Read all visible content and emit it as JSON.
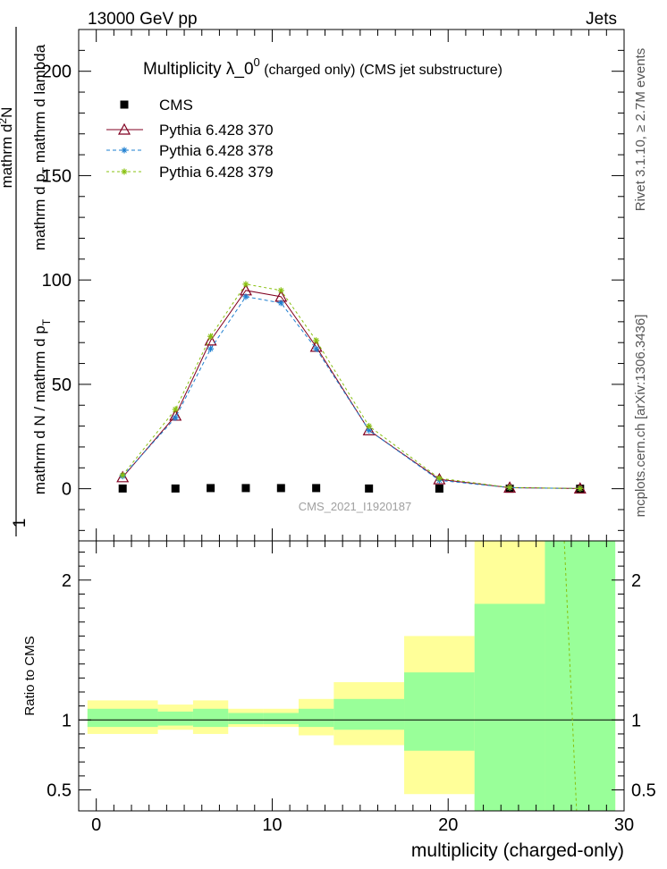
{
  "header": {
    "left": "13000 GeV pp",
    "right": "Jets"
  },
  "side_text": {
    "rivet": "Rivet 3.1.10, ≥ 2.7M events",
    "mcplots": "mcplots.cern.ch [arXiv:1306.3436]"
  },
  "watermark": "CMS_2021_I1920187",
  "chart_data": [
    {
      "type": "line",
      "title_main": "Multiplicity  λ_0",
      "title_sup": "0",
      "title_rest": "(charged only) (CMS jet substructure)",
      "ylabel_numerator": "1",
      "ylabel_denominator": "mathrm d N / mathrm d p",
      "ylabel_denominator_sub": "T",
      "ylabel_numerator_right_a": "mathrm d",
      "ylabel_numerator_right_sup": "2",
      "ylabel_numerator_right_b": "N",
      "ylabel_denominator_right_a": "mathrm d p",
      "ylabel_denominator_right_sub": "T",
      "ylabel_denominator_right_b": " mathrm d lambda",
      "xlim": [
        -1,
        30
      ],
      "ylim": [
        -25,
        220
      ],
      "yticks": [
        0,
        50,
        100,
        150,
        200
      ],
      "legend_position": "top-left",
      "series": [
        {
          "name": "CMS",
          "style": "data",
          "color": "#000000",
          "x": [
            1.5,
            4.5,
            6.5,
            8.5,
            10.5,
            12.5,
            15.5,
            19.5,
            23.5,
            27.5
          ],
          "y": [
            0.1,
            0.1,
            0.3,
            0.3,
            0.3,
            0.3,
            0.1,
            0.05,
            0.02,
            0.01
          ]
        },
        {
          "name": "Pythia 6.428 370",
          "style": "solid-triangle",
          "color": "#800020",
          "x": [
            1.5,
            4.5,
            6.5,
            8.5,
            10.5,
            12.5,
            15.5,
            19.5,
            23.5,
            27.5
          ],
          "y": [
            5.5,
            35.0,
            71.0,
            95.0,
            92.0,
            68.0,
            28.0,
            4.5,
            0.5,
            0.1
          ]
        },
        {
          "name": "Pythia 6.428 378",
          "style": "dashed-star",
          "color": "#1e7fd0",
          "x": [
            1.5,
            4.5,
            6.5,
            8.5,
            10.5,
            12.5,
            15.5,
            19.5,
            23.5,
            27.5
          ],
          "y": [
            6.0,
            34.0,
            67.0,
            92.0,
            89.0,
            67.0,
            28.0,
            4.0,
            0.5,
            0.1
          ]
        },
        {
          "name": "Pythia 6.428 379",
          "style": "dotted-star",
          "color": "#88c010",
          "x": [
            1.5,
            4.5,
            6.5,
            8.5,
            10.5,
            12.5,
            15.5,
            19.5,
            23.5,
            27.5
          ],
          "y": [
            6.5,
            38.0,
            73.0,
            98.0,
            95.0,
            71.0,
            30.0,
            5.0,
            0.6,
            0.1
          ]
        }
      ]
    },
    {
      "type": "area",
      "ylabel": "Ratio to CMS",
      "xlabel": "multiplicity (charged-only)",
      "xlim": [
        -1,
        30
      ],
      "ylim": [
        0.35,
        2.28
      ],
      "xticks": [
        0,
        10,
        20,
        30
      ],
      "yticks": [
        0.5,
        1,
        2
      ],
      "bands": {
        "edges": [
          -0.5,
          3.5,
          5.5,
          7.5,
          9.5,
          11.5,
          13.5,
          17.5,
          21.5,
          25.5,
          29.5
        ],
        "outer_low": [
          0.9,
          0.93,
          0.9,
          0.95,
          0.95,
          0.89,
          0.82,
          0.47,
          0.35,
          0.35
        ],
        "outer_high": [
          1.14,
          1.11,
          1.14,
          1.08,
          1.08,
          1.15,
          1.27,
          1.6,
          2.28,
          2.28
        ],
        "inner_low": [
          0.95,
          0.96,
          0.95,
          0.97,
          0.97,
          0.95,
          0.93,
          0.78,
          0.35,
          0.35
        ],
        "inner_high": [
          1.08,
          1.06,
          1.08,
          1.05,
          1.05,
          1.08,
          1.15,
          1.34,
          1.83,
          2.28
        ],
        "outer_color": "#ffff99",
        "inner_color": "#99ff99",
        "outer_high_override_bin9": 1.83,
        "inner_full_bin8_to_top": true
      },
      "ratio_line": {
        "name": "Pythia 6.428 379",
        "color": "#88c010",
        "x": [
          26.6,
          27.3
        ],
        "y": [
          2.28,
          0.35
        ]
      }
    }
  ]
}
